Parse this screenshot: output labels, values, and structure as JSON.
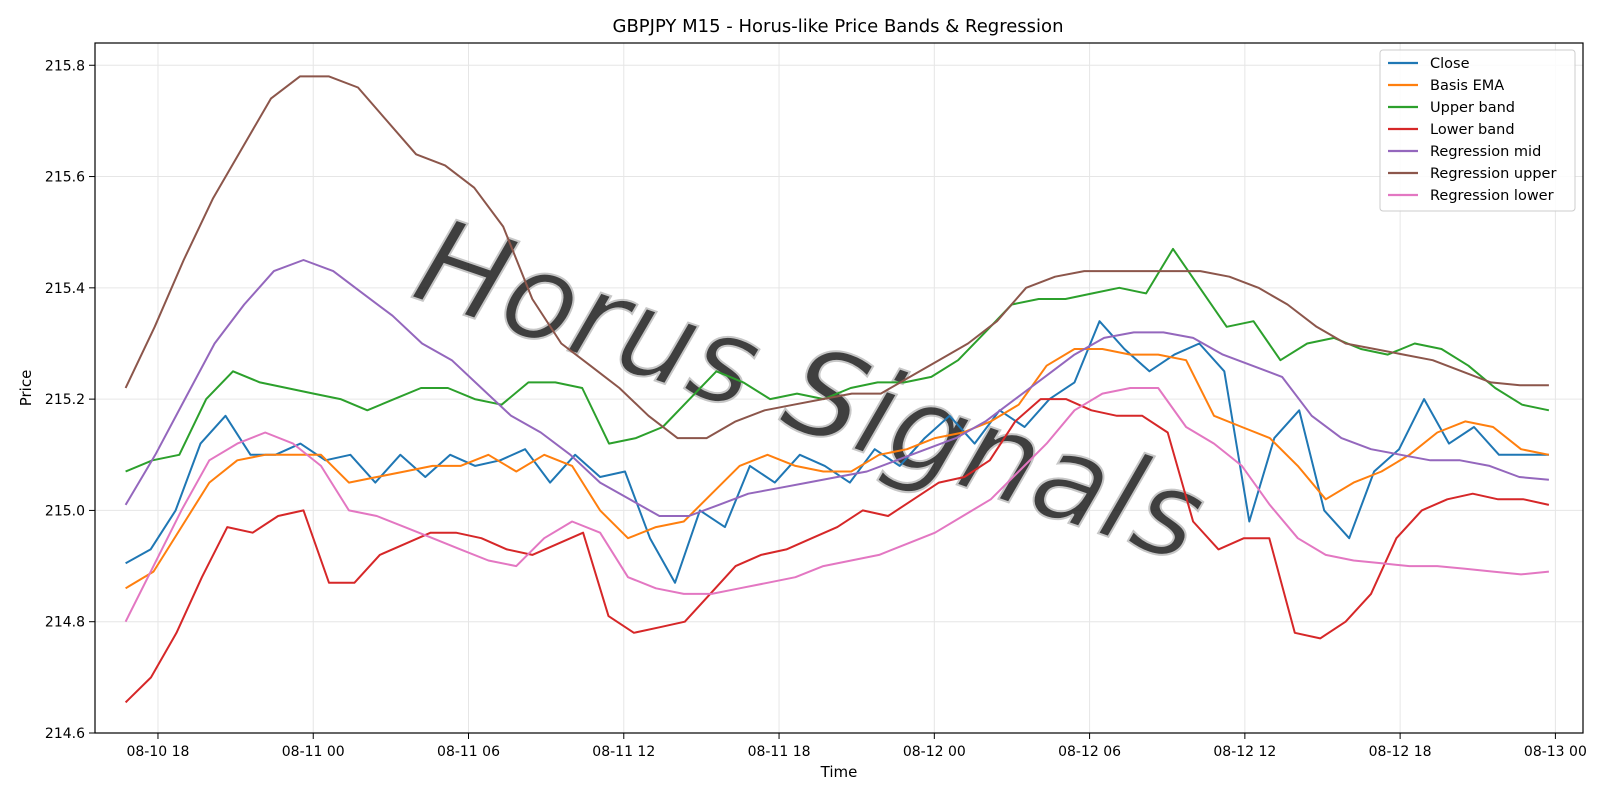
{
  "chart_data": {
    "type": "line",
    "title": "GBPJPY M15 - Horus-like Price Bands & Regression",
    "xlabel": "Time",
    "ylabel": "Price",
    "x_start": "08-10 16:45",
    "x_end": "08-12 23:45",
    "x_step_minutes": 45,
    "xlim": [
      "08-10 15:34",
      "08-13 01:04"
    ],
    "ylim": [
      214.6,
      215.84
    ],
    "yticks": [
      214.6,
      214.8,
      215.0,
      215.2,
      215.4,
      215.6,
      215.8
    ],
    "ytick_labels": [
      "214.6",
      "214.8",
      "215.0",
      "215.2",
      "215.4",
      "215.6",
      "215.8"
    ],
    "xticks": [
      "08-10 18:00",
      "08-11 00:00",
      "08-11 06:00",
      "08-11 12:00",
      "08-11 18:00",
      "08-12 00:00",
      "08-12 06:00",
      "08-12 12:00",
      "08-12 18:00",
      "08-13 00:00"
    ],
    "xtick_labels": [
      "08-10 18",
      "08-11 00",
      "08-11 06",
      "08-11 12",
      "08-11 18",
      "08-12 00",
      "08-12 06",
      "08-12 12",
      "08-12 18",
      "08-13 00"
    ],
    "grid": true,
    "legend_position": "top-right",
    "watermark": "Horus Signals",
    "series": [
      {
        "name": "Close",
        "color": "#1f77b4",
        "values": [
          214.905,
          214.93,
          215.0,
          215.12,
          215.17,
          215.1,
          215.1,
          215.12,
          215.09,
          215.1,
          215.05,
          215.1,
          215.06,
          215.1,
          215.08,
          215.09,
          215.11,
          215.05,
          215.1,
          215.06,
          215.07,
          214.95,
          214.87,
          215.0,
          214.97,
          215.08,
          215.05,
          215.1,
          215.08,
          215.05,
          215.11,
          215.08,
          215.13,
          215.17,
          215.12,
          215.18,
          215.15,
          215.2,
          215.23,
          215.34,
          215.29,
          215.25,
          215.28,
          215.3,
          215.25,
          214.98,
          215.13,
          215.18,
          215.0,
          214.95,
          215.07,
          215.11,
          215.2,
          215.12,
          215.15,
          215.1,
          215.1,
          215.1
        ]
      },
      {
        "name": "Basis EMA",
        "color": "#ff7f0e",
        "values": [
          214.86,
          214.89,
          214.97,
          215.05,
          215.09,
          215.1,
          215.1,
          215.1,
          215.05,
          215.06,
          215.07,
          215.08,
          215.08,
          215.1,
          215.07,
          215.1,
          215.08,
          215.0,
          214.95,
          214.97,
          214.98,
          215.03,
          215.08,
          215.1,
          215.08,
          215.07,
          215.07,
          215.1,
          215.11,
          215.13,
          215.14,
          215.16,
          215.19,
          215.26,
          215.29,
          215.29,
          215.28,
          215.28,
          215.27,
          215.17,
          215.15,
          215.13,
          215.08,
          215.02,
          215.05,
          215.07,
          215.1,
          215.14,
          215.16,
          215.15,
          215.11,
          215.1
        ]
      },
      {
        "name": "Upper band",
        "color": "#2ca02c",
        "values": [
          215.07,
          215.09,
          215.1,
          215.2,
          215.25,
          215.23,
          215.22,
          215.21,
          215.2,
          215.18,
          215.2,
          215.22,
          215.22,
          215.2,
          215.19,
          215.23,
          215.23,
          215.22,
          215.12,
          215.13,
          215.15,
          215.2,
          215.25,
          215.23,
          215.2,
          215.21,
          215.2,
          215.22,
          215.23,
          215.23,
          215.24,
          215.27,
          215.32,
          215.37,
          215.38,
          215.38,
          215.39,
          215.4,
          215.39,
          215.47,
          215.4,
          215.33,
          215.34,
          215.27,
          215.3,
          215.31,
          215.29,
          215.28,
          215.3,
          215.29,
          215.26,
          215.22,
          215.19,
          215.18
        ]
      },
      {
        "name": "Lower band",
        "color": "#d62728",
        "values": [
          214.655,
          214.7,
          214.78,
          214.88,
          214.97,
          214.96,
          214.99,
          215.0,
          214.87,
          214.87,
          214.92,
          214.94,
          214.96,
          214.96,
          214.95,
          214.93,
          214.92,
          214.94,
          214.96,
          214.81,
          214.78,
          214.79,
          214.8,
          214.85,
          214.9,
          214.92,
          214.93,
          214.95,
          214.97,
          215.0,
          214.99,
          215.02,
          215.05,
          215.06,
          215.09,
          215.16,
          215.2,
          215.2,
          215.18,
          215.17,
          215.17,
          215.14,
          214.98,
          214.93,
          214.95,
          214.95,
          214.78,
          214.77,
          214.8,
          214.85,
          214.95,
          215.0,
          215.02,
          215.03,
          215.02,
          215.02,
          215.01
        ]
      },
      {
        "name": "Regression mid",
        "color": "#9467bd",
        "values": [
          215.01,
          215.1,
          215.2,
          215.3,
          215.37,
          215.43,
          215.45,
          215.43,
          215.39,
          215.35,
          215.3,
          215.27,
          215.22,
          215.17,
          215.14,
          215.1,
          215.05,
          215.02,
          214.99,
          214.99,
          215.01,
          215.03,
          215.04,
          215.05,
          215.06,
          215.07,
          215.09,
          215.11,
          215.13,
          215.16,
          215.2,
          215.24,
          215.28,
          215.31,
          215.32,
          215.32,
          215.31,
          215.28,
          215.26,
          215.24,
          215.17,
          215.13,
          215.11,
          215.1,
          215.09,
          215.09,
          215.08,
          215.06,
          215.055
        ]
      },
      {
        "name": "Regression upper",
        "color": "#8c564b",
        "values": [
          215.22,
          215.33,
          215.45,
          215.56,
          215.65,
          215.74,
          215.78,
          215.78,
          215.76,
          215.7,
          215.64,
          215.62,
          215.58,
          215.51,
          215.38,
          215.3,
          215.26,
          215.22,
          215.17,
          215.13,
          215.13,
          215.16,
          215.18,
          215.19,
          215.2,
          215.21,
          215.21,
          215.24,
          215.27,
          215.3,
          215.34,
          215.4,
          215.42,
          215.43,
          215.43,
          215.43,
          215.43,
          215.43,
          215.42,
          215.4,
          215.37,
          215.33,
          215.3,
          215.29,
          215.28,
          215.27,
          215.25,
          215.23,
          215.225,
          215.225
        ]
      },
      {
        "name": "Regression lower",
        "color": "#e377c2",
        "values": [
          214.8,
          214.9,
          215.0,
          215.09,
          215.12,
          215.14,
          215.12,
          215.08,
          215.0,
          214.99,
          214.97,
          214.95,
          214.93,
          214.91,
          214.9,
          214.95,
          214.98,
          214.96,
          214.88,
          214.86,
          214.85,
          214.85,
          214.86,
          214.87,
          214.88,
          214.9,
          214.91,
          214.92,
          214.94,
          214.96,
          214.99,
          215.02,
          215.07,
          215.12,
          215.18,
          215.21,
          215.22,
          215.22,
          215.15,
          215.12,
          215.08,
          215.01,
          214.95,
          214.92,
          214.91,
          214.905,
          214.9,
          214.9,
          214.895,
          214.89,
          214.885,
          214.89
        ]
      }
    ]
  }
}
